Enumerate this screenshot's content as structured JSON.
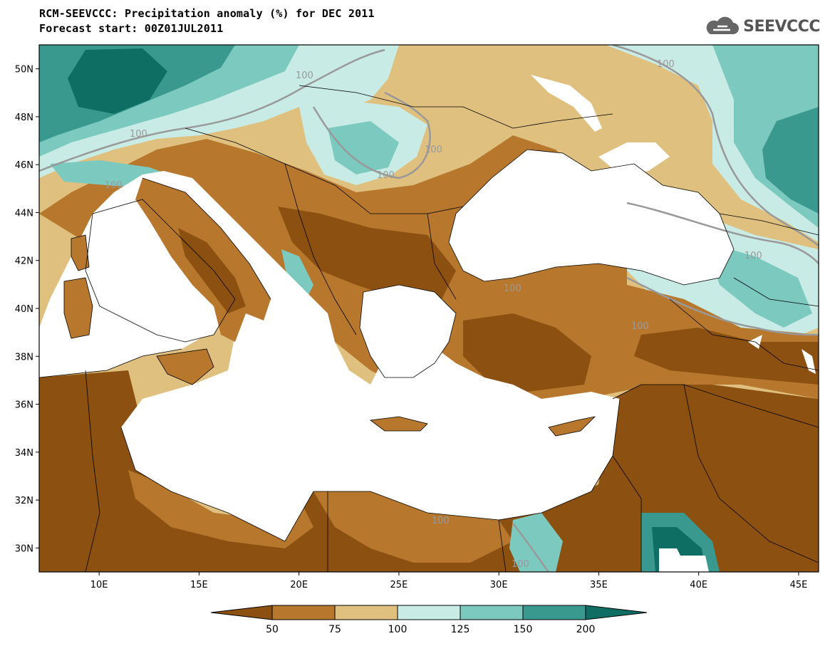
{
  "title": "RCM-SEEVCCC: Precipitation anomaly (%) for DEC 2011",
  "subtitle": "Forecast start: 00Z01JUL2011",
  "logo": {
    "text": "SEEVCCC",
    "icon": "cloud-icon"
  },
  "map": {
    "lon_range": [
      7,
      46
    ],
    "lat_range": [
      29,
      51
    ],
    "lat_ticks": [
      "30N",
      "32N",
      "34N",
      "36N",
      "38N",
      "40N",
      "42N",
      "44N",
      "46N",
      "48N",
      "50N"
    ],
    "lon_ticks": [
      "10E",
      "15E",
      "20E",
      "25E",
      "30E",
      "35E",
      "40E",
      "45E"
    ],
    "contour_label": "100"
  },
  "legend": {
    "labels": [
      "50",
      "75",
      "100",
      "125",
      "150",
      "200"
    ],
    "colors": [
      "#8c5010",
      "#b7782e",
      "#dfc07e",
      "#c8ebe5",
      "#7cc9bf",
      "#3a998f",
      "#0e6e64"
    ]
  },
  "colors": {
    "sea": "#ffffff",
    "very_dry": "#8c5010",
    "dry": "#b7782e",
    "slightly_dry": "#dfc07e",
    "slightly_wet": "#c8ebe5",
    "wet": "#7cc9bf",
    "very_wet": "#3a998f"
  }
}
